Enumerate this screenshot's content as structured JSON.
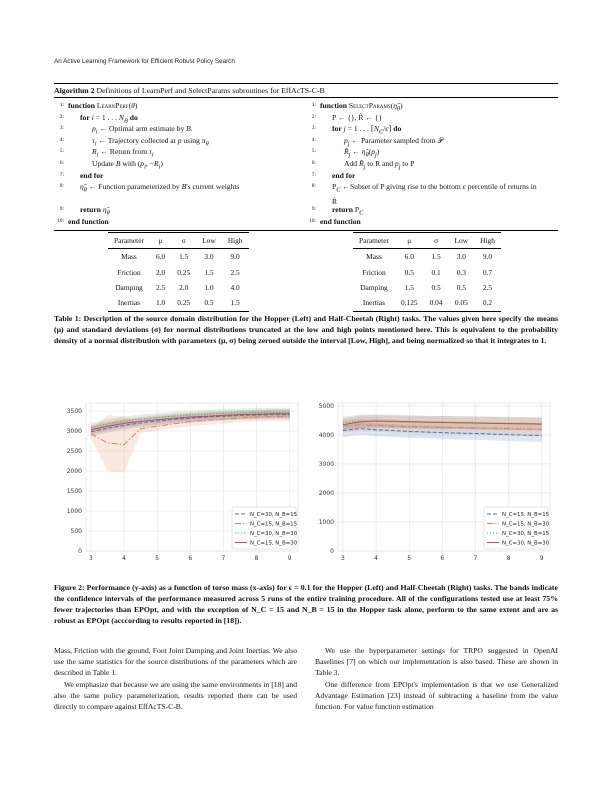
{
  "header": {
    "running_title": "An Active Learning Framework for Efficient Robust Policy Search"
  },
  "algorithm": {
    "title_bold": "Algorithm 2",
    "title_rest": " Definitions of LearnPerf and SelectParams subroutines for EffAcTS-C-B",
    "left": [
      {
        "n": "1:",
        "html": "<span class='kw'>function</span> <span class='sc'>LearnPerf</span>(<i>θ</i>)",
        "indent": 0
      },
      {
        "n": "2:",
        "html": "<span class='kw'>for</span> <i>i</i> = 1 . . . <i>N<sub>B</sub></i> <span class='kw'>do</span>",
        "indent": 1
      },
      {
        "n": "3:",
        "html": "<i>p<sub>i</sub></i> ← Optimal arm estimate by <i>B</i>.",
        "indent": 2
      },
      {
        "n": "4:",
        "html": "<i>τ<sub>i</sub></i> ← Trajectory collected at <i>p</i> using <i>π<sub>θ</sub></i>",
        "indent": 2
      },
      {
        "n": "5:",
        "html": "<i>R<sub>i</sub></i> ← Return from <i>τ<sub>i</sub></i>",
        "indent": 2
      },
      {
        "n": "6:",
        "html": "Update <i>B</i> with (<i>p<sub>i</sub></i>, −<i>R<sub>i</sub></i>)",
        "indent": 2
      },
      {
        "n": "7:",
        "html": "<span class='kw'>end for</span>",
        "indent": 1
      },
      {
        "n": "8:",
        "html": "<i>η̂<sub>θ</sub></i> ← Function parameterized by <i>B</i>'s current weights",
        "indent": 1,
        "tall": true
      },
      {
        "n": "9:",
        "html": "<span class='kw'>return</span> <i>η̂<sub>θ</sub></i>",
        "indent": 1
      },
      {
        "n": "10:",
        "html": "<span class='kw'>end function</span>",
        "indent": 0
      }
    ],
    "right": [
      {
        "n": "1:",
        "html": "<span class='kw'>function</span> <span class='sc'>SelectParams</span>(<i>η̂<sub>θ</sub></i>)",
        "indent": 0
      },
      {
        "n": "2:",
        "html": "P ← {}, R̂ ← {}",
        "indent": 1
      },
      {
        "n": "3:",
        "html": "<span class='kw'>for</span> <i>j</i> = 1 . . . ⌈<i>N<sub>C</sub></i>/<i>ϵ</i>⌉ <span class='kw'>do</span>",
        "indent": 1
      },
      {
        "n": "4:",
        "html": "<i>p<sub>j</sub></i> ← Parameter sampled from 𝒫",
        "indent": 2
      },
      {
        "n": "5:",
        "html": "<i>R̂<sub>j</sub></i> ← <i>η̂<sub>θ</sub></i>(<i>p<sub>j</sub></i>)",
        "indent": 2
      },
      {
        "n": "6:",
        "html": "Add <i>R̂<sub>j</sub></i> to R and <i>p<sub>j</sub></i> to P",
        "indent": 2
      },
      {
        "n": "7:",
        "html": "<span class='kw'>end for</span>",
        "indent": 1
      },
      {
        "n": "8:",
        "html": "P<sub><i>C</i></sub> ←Subset of P giving rise to the bottom <i>ϵ</i> percentile of returns in R̂",
        "indent": 1,
        "tall": true
      },
      {
        "n": "9:",
        "html": "<span class='kw'>return</span> P<sub><i>C</i></sub>",
        "indent": 1
      },
      {
        "n": "10:",
        "html": "<span class='kw'>end function</span>",
        "indent": 0
      }
    ]
  },
  "tables": {
    "headers": [
      "Parameter",
      "μ",
      "σ",
      "Low",
      "High"
    ],
    "hopper": [
      [
        "Mass",
        "6.0",
        "1.5",
        "3.0",
        "9.0"
      ],
      [
        "Friction",
        "2.0",
        "0.25",
        "1.5",
        "2.5"
      ],
      [
        "Damping",
        "2.5",
        "2.0",
        "1.0",
        "4.0"
      ],
      [
        "Inertias",
        "1.0",
        "0.25",
        "0.5",
        "1.5"
      ]
    ],
    "halfcheetah": [
      [
        "Mass",
        "6.0",
        "1.5",
        "3.0",
        "9.0"
      ],
      [
        "Friction",
        "0.5",
        "0.1",
        "0.3",
        "0.7"
      ],
      [
        "Damping",
        "1.5",
        "0.5",
        "0.5",
        "2.5"
      ],
      [
        "Inertias",
        "0.125",
        "0.04",
        "0.05",
        "0.2"
      ]
    ]
  },
  "table_caption": "Table 1: Description of the source domain distribution for the Hopper (Left) and Half-Cheetah (Right) tasks. The values given here specify the means (μ) and standard deviations (σ) for normal distributions truncated at the low and high points mentioned here. This is equivalent to the probability density of a normal distribution with parameters (μ, σ) being zeroed outside the interval [Low, High], and being normalized so that it integrates to 1.",
  "chart_data": [
    {
      "type": "line",
      "x": [
        3,
        3.5,
        4,
        4.5,
        5,
        5.5,
        6,
        6.5,
        7,
        7.5,
        8,
        8.5,
        9
      ],
      "ylim": [
        0,
        3700
      ],
      "xlim": [
        2.85,
        9.25
      ],
      "yticks": [
        0,
        500,
        1000,
        1500,
        2000,
        2500,
        3000,
        3500
      ],
      "xticks": [
        3,
        4,
        5,
        6,
        7,
        8,
        9
      ],
      "grid": true,
      "legend": "bottom-right",
      "series": [
        {
          "name": "N_C=30, N_B=15",
          "color": "#4c72b0",
          "dash": "4,2",
          "values": [
            2980,
            3070,
            3140,
            3200,
            3250,
            3290,
            3320,
            3350,
            3370,
            3390,
            3400,
            3410,
            3410
          ]
        },
        {
          "name": "N_C=15, N_B=15",
          "color": "#dd8452",
          "dash": "6,2,1.5,2",
          "values": [
            2930,
            2700,
            2660,
            3060,
            3120,
            3180,
            3230,
            3270,
            3300,
            3330,
            3350,
            3360,
            3360
          ]
        },
        {
          "name": "N_C=30, N_B=30",
          "color": "#55a868",
          "dash": "1.2,1.8",
          "values": [
            3090,
            3180,
            3250,
            3300,
            3340,
            3370,
            3400,
            3420,
            3440,
            3450,
            3460,
            3470,
            3470
          ]
        },
        {
          "name": "N_C=15, N_B=30",
          "color": "#c44e52",
          "dash": "",
          "values": [
            3030,
            3120,
            3190,
            3240,
            3280,
            3320,
            3350,
            3370,
            3390,
            3410,
            3420,
            3430,
            3430
          ]
        }
      ]
    },
    {
      "type": "line",
      "x": [
        3,
        3.5,
        4,
        4.5,
        5,
        5.5,
        6,
        6.5,
        7,
        7.5,
        8,
        8.5,
        9
      ],
      "ylim": [
        0,
        5100
      ],
      "xlim": [
        2.85,
        9.25
      ],
      "yticks": [
        0,
        1000,
        2000,
        3000,
        4000,
        5000
      ],
      "xticks": [
        3,
        4,
        5,
        6,
        7,
        8,
        9
      ],
      "grid": true,
      "legend": "bottom-right",
      "series": [
        {
          "name": "N_C=15, N_B=15",
          "color": "#4c72b0",
          "dash": "4,2",
          "values": [
            4150,
            4220,
            4180,
            4150,
            4120,
            4100,
            4080,
            4060,
            4050,
            4030,
            4010,
            3990,
            3980
          ]
        },
        {
          "name": "N_C=15, N_B=30",
          "color": "#dd8452",
          "dash": "6,2,1.5,2",
          "values": [
            4300,
            4350,
            4330,
            4300,
            4280,
            4270,
            4260,
            4250,
            4240,
            4230,
            4220,
            4210,
            4200
          ]
        },
        {
          "name": "N_C=30, N_B=15",
          "color": "#55a868",
          "dash": "1.2,1.8",
          "values": [
            4420,
            4480,
            4470,
            4450,
            4440,
            4430,
            4430,
            4420,
            4420,
            4410,
            4400,
            4400,
            4390
          ]
        },
        {
          "name": "N_C=30, N_B=30",
          "color": "#c44e52",
          "dash": "",
          "values": [
            4350,
            4450,
            4480,
            4470,
            4460,
            4440,
            4430,
            4420,
            4410,
            4400,
            4390,
            4380,
            4370
          ]
        }
      ]
    }
  ],
  "figure_caption": "Figure 2: Performance (y-axis) as a function of torso mass (x-axis) for ϵ = 0.1 for the Hopper (Left) and Half-Cheetah (Right) tasks. The bands indicate the confidence intervals of the performance measured across 5 runs of the entire training procedure. All of the configurations tested use at least 75% fewer trajectories than EPOpt, and with the exception of N_C = 15 and N_B = 15 in the Hopper task alone, perform to the same extent and are as robust as EPOpt (acccording to results reported in [18]).",
  "body_left": [
    "Mass, Friction with the ground, Foot Joint Damping and Joint Inertias. We also use the same statistics for the source distributions of the parameters which are described in Table 1.",
    "We emphasize that because we are using the same environments in [18] and also the same policy parameterization, results reported there can be used directly to compare against EffAcTS-C-B."
  ],
  "body_right": [
    "We use the hyperparameter settings for TRPO suggested in OpenAI Baselines [7] on which our implementation is also based. These are shown in Table 3.",
    "One difference from EPOpt's implementation is that we use Generalized Advantage Estimation [23] instead of subtracting a baseline from the value function. For value function estimation"
  ]
}
